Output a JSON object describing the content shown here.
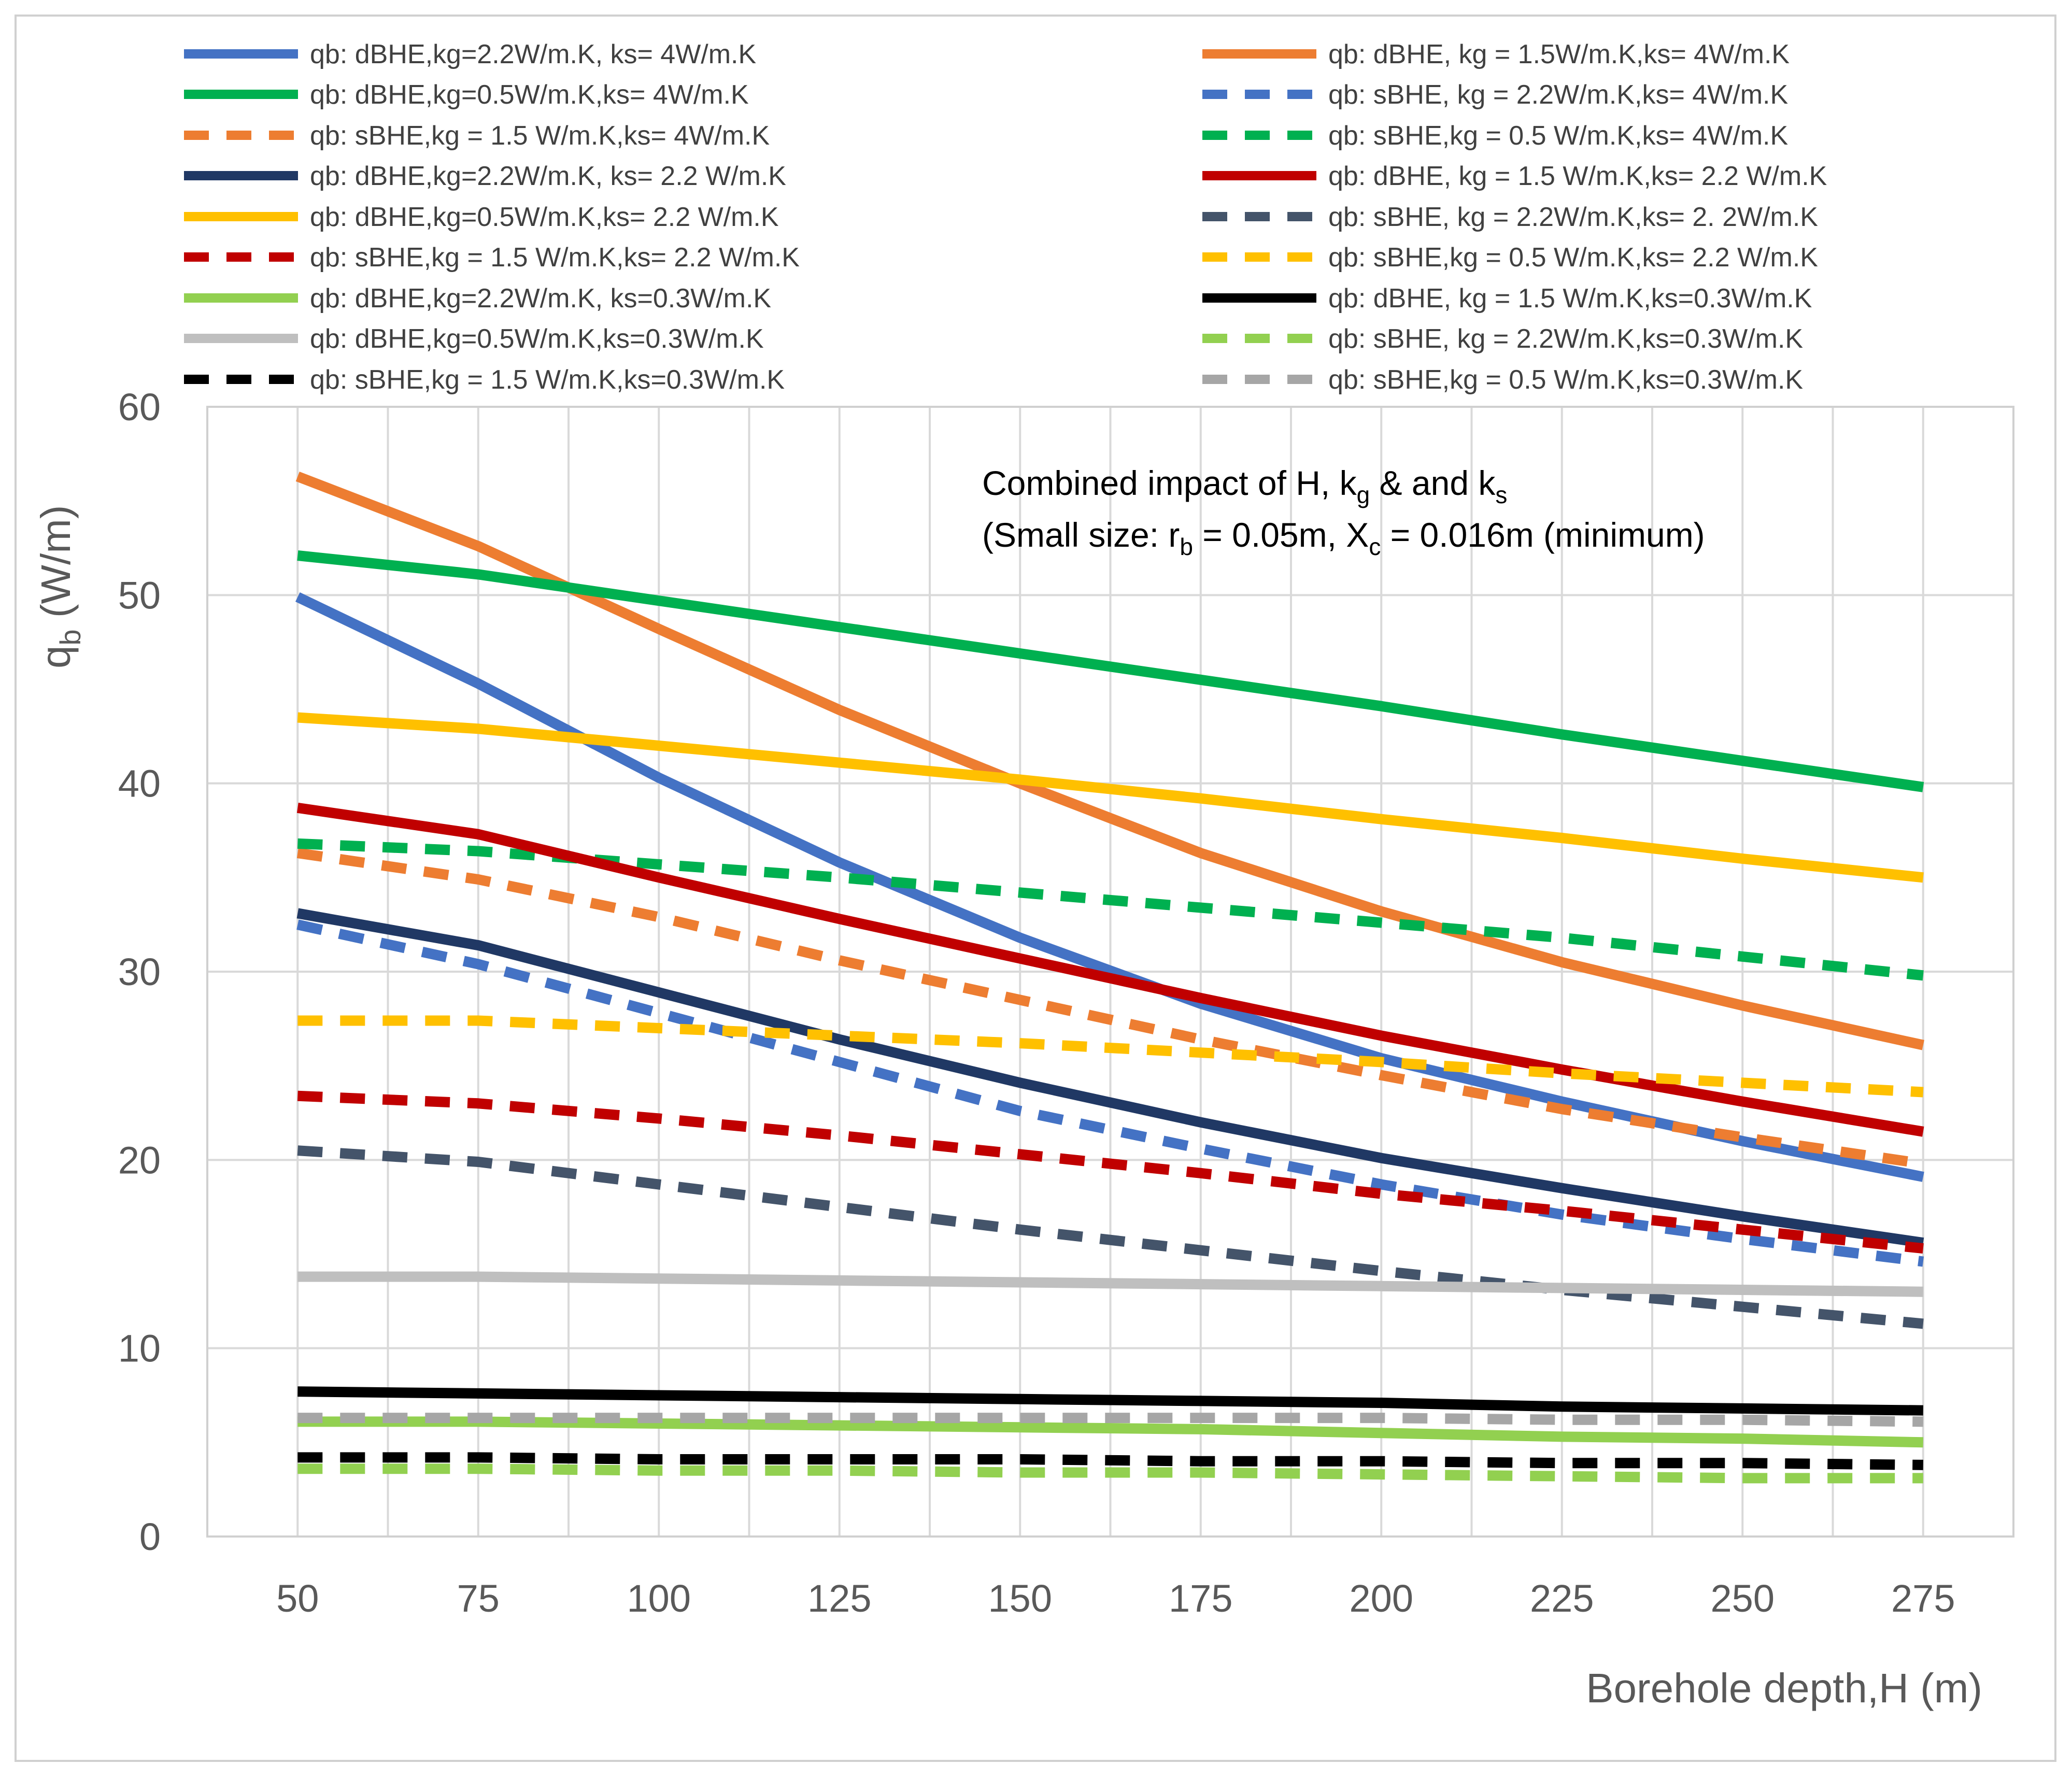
{
  "chart_data": {
    "type": "line",
    "title": "",
    "xlabel": "Borehole depth,H (m)",
    "ylabel": "qb (W/m)",
    "ylabel_main": "q",
    "ylabel_sub": "b",
    "ylabel_unit": " (W/m)",
    "xlim": [
      50,
      275
    ],
    "ylim": [
      0,
      60
    ],
    "x": [
      50,
      75,
      100,
      125,
      150,
      175,
      200,
      225,
      250,
      275
    ],
    "x_ticks": [
      "50",
      "75",
      "100",
      "125",
      "150",
      "175",
      "200",
      "225",
      "250",
      "275"
    ],
    "y_ticks": [
      "0",
      "10",
      "20",
      "30",
      "40",
      "50",
      "60"
    ],
    "grid": true,
    "legend_position": "top",
    "annotation": {
      "line1": "Combined impact of H, k",
      "line1_sub1": "g",
      "line1_mid": " & and k",
      "line1_sub2": "s",
      "line2": "(Small size: r",
      "line2_sub1": "b",
      "line2_mid": " = 0.05m, X",
      "line2_sub2": "c",
      "line2_end": " = 0.016m (minimum)"
    },
    "series": [
      {
        "name": "qb: dBHE,kg=2.2W/m.K, ks= 4W/m.K",
        "color": "#4472C4",
        "dash": false,
        "values": [
          49.9,
          45.3,
          40.3,
          35.8,
          31.8,
          28.3,
          25.4,
          23.1,
          21.0,
          19.1
        ]
      },
      {
        "name": "qb: dBHE, kg = 1.5W/m.K,ks= 4W/m.K",
        "color": "#ED7D31",
        "dash": false,
        "values": [
          56.3,
          52.6,
          48.2,
          43.9,
          40.0,
          36.3,
          33.2,
          30.5,
          28.2,
          26.1
        ]
      },
      {
        "name": "qb: dBHE,kg=0.5W/m.K,ks= 4W/m.K",
        "color": "#00B050",
        "dash": false,
        "values": [
          52.1,
          51.1,
          49.7,
          48.3,
          46.9,
          45.5,
          44.1,
          42.6,
          41.2,
          39.8
        ]
      },
      {
        "name": "qb: sBHE, kg = 2.2W/m.K,ks= 4W/m.K",
        "color": "#4472C4",
        "dash": true,
        "values": [
          32.5,
          30.4,
          27.8,
          25.2,
          22.6,
          20.6,
          18.7,
          17.1,
          15.8,
          14.6
        ]
      },
      {
        "name": "qb: sBHE,kg = 1.5 W/m.K,ks= 4W/m.K",
        "color": "#ED7D31",
        "dash": true,
        "values": [
          36.3,
          34.9,
          32.9,
          30.6,
          28.5,
          26.4,
          24.5,
          22.7,
          21.2,
          19.8
        ]
      },
      {
        "name": "qb: sBHE,kg = 0.5 W/m.K,ks= 4W/m.K",
        "color": "#00B050",
        "dash": true,
        "values": [
          36.8,
          36.4,
          35.7,
          35.0,
          34.2,
          33.4,
          32.6,
          31.8,
          30.8,
          29.8
        ]
      },
      {
        "name": "qb: dBHE,kg=2.2W/m.K, ks= 2.2 W/m.K",
        "color": "#203864",
        "dash": false,
        "values": [
          33.1,
          31.4,
          28.9,
          26.4,
          24.1,
          22.0,
          20.1,
          18.5,
          17.0,
          15.6
        ]
      },
      {
        "name": "qb: dBHE, kg = 1.5 W/m.K,ks= 2.2 W/m.K",
        "color": "#C00000",
        "dash": false,
        "values": [
          38.7,
          37.3,
          35.0,
          32.8,
          30.7,
          28.6,
          26.6,
          24.8,
          23.1,
          21.5
        ]
      },
      {
        "name": "qb: dBHE,kg=0.5W/m.K,ks= 2.2 W/m.K",
        "color": "#FFC000",
        "dash": false,
        "values": [
          43.5,
          42.9,
          42.0,
          41.1,
          40.2,
          39.2,
          38.1,
          37.1,
          36.0,
          35.0
        ]
      },
      {
        "name": "qb: sBHE, kg = 2.2W/m.K,ks= 2. 2W/m.K",
        "color": "#44546A",
        "dash": true,
        "values": [
          20.5,
          19.9,
          18.7,
          17.5,
          16.3,
          15.2,
          14.1,
          13.1,
          12.2,
          11.3
        ]
      },
      {
        "name": "qb: sBHE,kg = 1.5 W/m.K,ks= 2.2 W/m.K",
        "color": "#C00000",
        "dash": true,
        "values": [
          23.4,
          23.0,
          22.2,
          21.3,
          20.3,
          19.3,
          18.2,
          17.3,
          16.3,
          15.3
        ]
      },
      {
        "name": "qb: sBHE,kg = 0.5 W/m.K,ks= 2.2 W/m.K",
        "color": "#FFC000",
        "dash": true,
        "values": [
          27.4,
          27.4,
          27.0,
          26.6,
          26.2,
          25.7,
          25.2,
          24.6,
          24.1,
          23.6
        ]
      },
      {
        "name": "qb: dBHE,kg=2.2W/m.K, ks=0.3W/m.K",
        "color": "#92D050",
        "dash": false,
        "values": [
          6.1,
          6.1,
          6.0,
          5.9,
          5.8,
          5.7,
          5.5,
          5.3,
          5.2,
          5.0
        ]
      },
      {
        "name": "qb: dBHE, kg = 1.5 W/m.K,ks=0.3W/m.K",
        "color": "#000000",
        "dash": false,
        "values": [
          7.7,
          7.6,
          7.5,
          7.4,
          7.3,
          7.2,
          7.1,
          6.9,
          6.8,
          6.7
        ]
      },
      {
        "name": "qb: dBHE,kg=0.5W/m.K,ks=0.3W/m.K",
        "color": "#BFBFBF",
        "dash": false,
        "values": [
          13.8,
          13.8,
          13.7,
          13.6,
          13.5,
          13.4,
          13.3,
          13.2,
          13.1,
          13.0
        ]
      },
      {
        "name": "qb: sBHE, kg = 2.2W/m.K,ks=0.3W/m.K",
        "color": "#92D050",
        "dash": true,
        "values": [
          3.6,
          3.6,
          3.5,
          3.5,
          3.4,
          3.4,
          3.3,
          3.2,
          3.1,
          3.1
        ]
      },
      {
        "name": "qb: sBHE,kg = 1.5 W/m.K,ks=0.3W/m.K",
        "color": "#000000",
        "dash": true,
        "values": [
          4.2,
          4.2,
          4.1,
          4.1,
          4.1,
          4.0,
          4.0,
          3.9,
          3.9,
          3.8
        ]
      },
      {
        "name": "qb: sBHE,kg = 0.5 W/m.K,ks=0.3W/m.K",
        "color": "#A6A6A6",
        "dash": true,
        "values": [
          6.3,
          6.3,
          6.3,
          6.3,
          6.3,
          6.3,
          6.3,
          6.2,
          6.2,
          6.1
        ]
      }
    ]
  }
}
